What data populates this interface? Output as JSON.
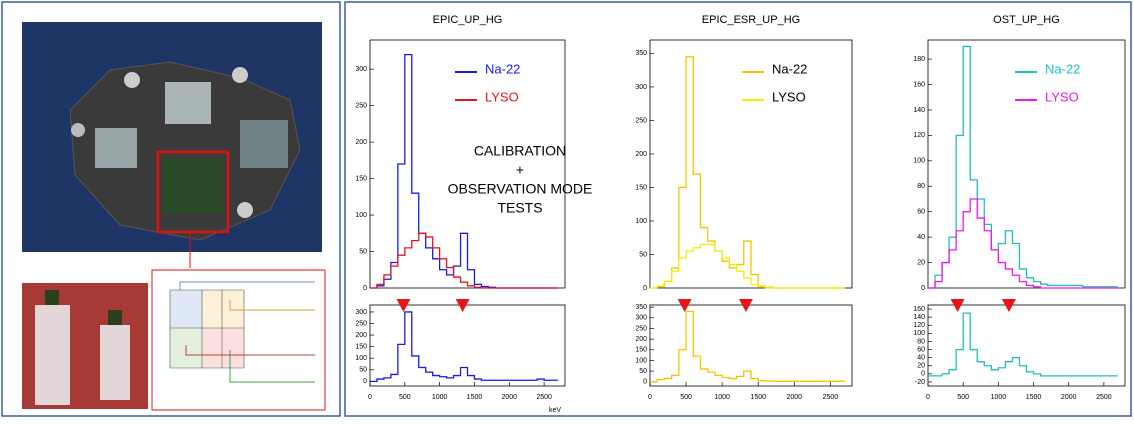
{
  "chart_data": [
    {
      "type": "line",
      "step": true,
      "title": "EPIC_UP_HG",
      "annotation": [
        "CALIBRATION",
        "+",
        "OBSERVATION MODE",
        "TESTS"
      ],
      "x": [
        0,
        100,
        200,
        300,
        400,
        500,
        600,
        700,
        800,
        900,
        1000,
        1100,
        1200,
        1300,
        1400,
        1500,
        1600,
        1700,
        1800,
        1900,
        2000,
        2100,
        2200,
        2300,
        2400,
        2500,
        2600,
        2700
      ],
      "xlim": [
        0,
        2800
      ],
      "ylim": [
        0,
        340
      ],
      "yticks": [
        0,
        50,
        100,
        150,
        200,
        250,
        300
      ],
      "legend": "upper right",
      "series": [
        {
          "name": "Na-22",
          "color": "#1a1adf",
          "values": [
            0,
            3,
            12,
            35,
            170,
            320,
            130,
            75,
            55,
            40,
            25,
            18,
            30,
            75,
            25,
            5,
            2,
            1,
            0,
            0,
            0,
            0,
            0,
            0,
            0,
            0,
            0,
            0
          ]
        },
        {
          "name": "LYSO",
          "color": "#e8141a",
          "values": [
            0,
            5,
            18,
            30,
            45,
            55,
            65,
            75,
            70,
            55,
            40,
            28,
            15,
            8,
            3,
            1,
            0,
            0,
            0,
            0,
            0,
            0,
            0,
            0,
            0,
            0,
            0,
            0
          ]
        }
      ]
    },
    {
      "type": "line",
      "step": true,
      "xlabel": "keV",
      "x": [
        0,
        100,
        200,
        300,
        400,
        500,
        600,
        700,
        800,
        900,
        1000,
        1100,
        1200,
        1300,
        1400,
        1500,
        1600,
        1700,
        1800,
        1900,
        2000,
        2100,
        2200,
        2300,
        2400,
        2500,
        2600,
        2700
      ],
      "xlim": [
        0,
        2800
      ],
      "xticks": [
        0,
        500,
        1000,
        1500,
        2000,
        2500
      ],
      "ylim": [
        -20,
        330
      ],
      "yticks": [
        0,
        50,
        100,
        150,
        200,
        250,
        300
      ],
      "markers": [
        480,
        1330
      ],
      "marker_color": "#e8141a",
      "series": [
        {
          "name": "Na-22",
          "color": "#1a1adf",
          "values": [
            0,
            10,
            15,
            30,
            160,
            300,
            110,
            60,
            40,
            25,
            20,
            15,
            25,
            60,
            25,
            10,
            5,
            5,
            5,
            5,
            5,
            5,
            5,
            5,
            10,
            5,
            5,
            5
          ]
        }
      ]
    },
    {
      "type": "line",
      "step": true,
      "title": "EPIC_ESR_UP_HG",
      "legend_text_color": "#000",
      "x": [
        0,
        100,
        200,
        300,
        400,
        500,
        600,
        700,
        800,
        900,
        1000,
        1100,
        1200,
        1300,
        1400,
        1500,
        1600,
        1700,
        1800,
        1900,
        2000,
        2100,
        2200,
        2300,
        2400,
        2500,
        2600,
        2700
      ],
      "xlim": [
        0,
        2800
      ],
      "ylim": [
        0,
        370
      ],
      "yticks": [
        0,
        50,
        100,
        150,
        200,
        250,
        300,
        350
      ],
      "legend": "upper right",
      "series": [
        {
          "name": "Na-22",
          "color": "#f5c400",
          "values": [
            0,
            2,
            10,
            30,
            150,
            345,
            170,
            90,
            70,
            55,
            40,
            30,
            35,
            70,
            20,
            3,
            1,
            0,
            0,
            0,
            0,
            0,
            0,
            0,
            0,
            0,
            0,
            0
          ]
        },
        {
          "name": "LYSO",
          "color": "#f0f000",
          "values": [
            0,
            3,
            10,
            25,
            45,
            55,
            60,
            65,
            65,
            55,
            45,
            35,
            25,
            15,
            5,
            2,
            0,
            0,
            0,
            0,
            0,
            0,
            0,
            0,
            0,
            0,
            0,
            0
          ]
        }
      ]
    },
    {
      "type": "line",
      "step": true,
      "x": [
        0,
        100,
        200,
        300,
        400,
        500,
        600,
        700,
        800,
        900,
        1000,
        1100,
        1200,
        1300,
        1400,
        1500,
        1600,
        1700,
        1800,
        1900,
        2000,
        2100,
        2200,
        2300,
        2400,
        2500,
        2600,
        2700
      ],
      "xlim": [
        0,
        2800
      ],
      "xticks": [
        0,
        500,
        1000,
        1500,
        2000,
        2500
      ],
      "ylim": [
        -20,
        360
      ],
      "yticks": [
        0,
        50,
        100,
        150,
        200,
        250,
        300,
        350
      ],
      "markers": [
        480,
        1330
      ],
      "marker_color": "#e8141a",
      "series": [
        {
          "name": "Na-22",
          "color": "#f5c400",
          "values": [
            0,
            10,
            15,
            30,
            150,
            330,
            120,
            60,
            45,
            30,
            20,
            15,
            25,
            50,
            15,
            5,
            3,
            2,
            2,
            2,
            2,
            2,
            2,
            2,
            2,
            2,
            2,
            2
          ]
        }
      ]
    },
    {
      "type": "line",
      "step": true,
      "title": "OST_UP_HG",
      "x": [
        0,
        100,
        200,
        300,
        400,
        500,
        600,
        700,
        800,
        900,
        1000,
        1100,
        1200,
        1300,
        1400,
        1500,
        1600,
        1700,
        1800,
        1900,
        2000,
        2100,
        2200,
        2300,
        2400,
        2500,
        2600,
        2700
      ],
      "xlim": [
        0,
        2800
      ],
      "ylim": [
        0,
        195
      ],
      "yticks": [
        0,
        20,
        40,
        60,
        80,
        100,
        120,
        140,
        160,
        180
      ],
      "legend": "upper right",
      "series": [
        {
          "name": "Na-22",
          "color": "#1fbfbf",
          "values": [
            0,
            10,
            20,
            40,
            120,
            190,
            85,
            70,
            50,
            30,
            35,
            45,
            35,
            15,
            8,
            5,
            3,
            2,
            2,
            2,
            2,
            2,
            1,
            1,
            1,
            1,
            1,
            1
          ]
        },
        {
          "name": "LYSO",
          "color": "#f014f0",
          "values": [
            0,
            5,
            20,
            30,
            45,
            60,
            70,
            55,
            45,
            30,
            20,
            15,
            10,
            5,
            2,
            1,
            0,
            0,
            0,
            0,
            0,
            0,
            0,
            0,
            0,
            0,
            0,
            0
          ]
        }
      ]
    },
    {
      "type": "line",
      "step": true,
      "x": [
        0,
        100,
        200,
        300,
        400,
        500,
        600,
        700,
        800,
        900,
        1000,
        1100,
        1200,
        1300,
        1400,
        1500,
        1600,
        1700,
        1800,
        1900,
        2000,
        2100,
        2200,
        2300,
        2400,
        2500,
        2600,
        2700
      ],
      "xlim": [
        0,
        2800
      ],
      "xticks": [
        0,
        500,
        1000,
        1500,
        2000,
        2500
      ],
      "ylim": [
        -30,
        170
      ],
      "yticks": [
        -20,
        0,
        20,
        40,
        60,
        80,
        100,
        120,
        140,
        160
      ],
      "markers": [
        420,
        1150
      ],
      "marker_color": "#e8141a",
      "series": [
        {
          "name": "Na-22",
          "color": "#1fbfbf",
          "values": [
            -5,
            -5,
            0,
            10,
            60,
            150,
            60,
            30,
            20,
            10,
            15,
            30,
            40,
            20,
            5,
            0,
            -5,
            -5,
            -5,
            -5,
            -5,
            -5,
            -5,
            -5,
            -5,
            -5,
            -5,
            -5
          ]
        }
      ]
    }
  ]
}
